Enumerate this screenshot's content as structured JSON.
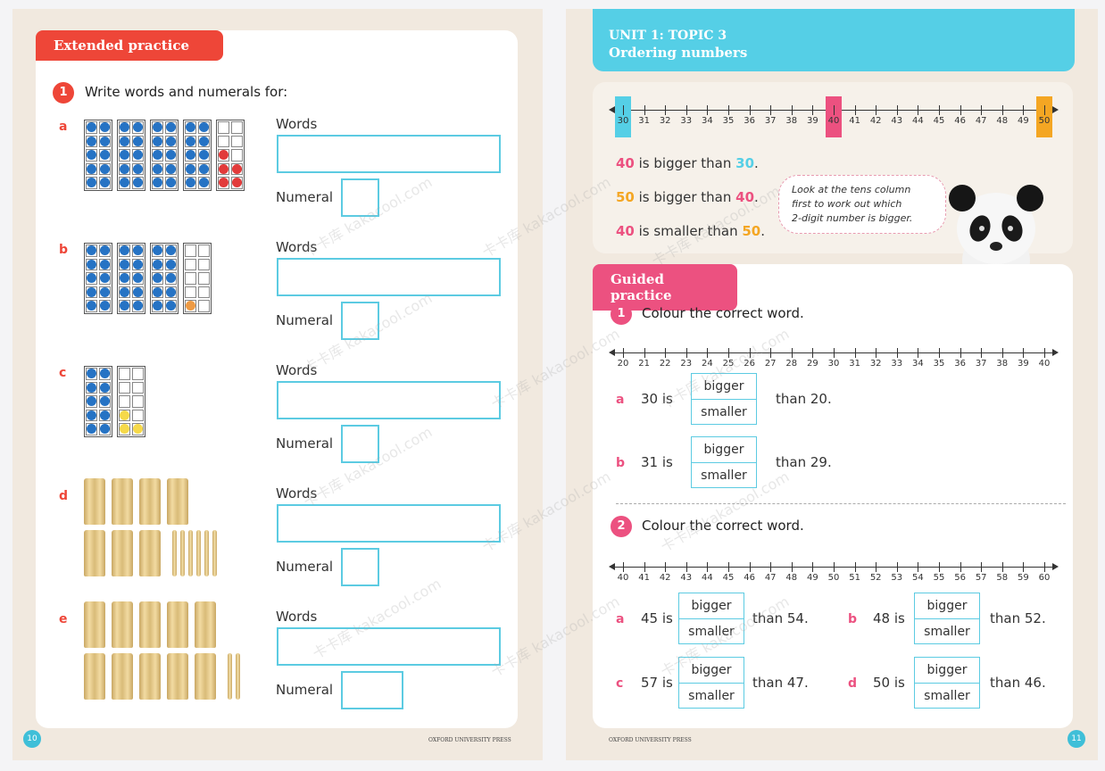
{
  "left": {
    "tab": "Extended practice",
    "q1": {
      "num": "1",
      "text": "Write words and numerals for:"
    },
    "letters": [
      "a",
      "b",
      "c",
      "d",
      "e"
    ],
    "words_label": "Words",
    "numeral_label": "Numeral",
    "page_number": "10",
    "footer": "OXFORD UNIVERSITY PRESS"
  },
  "right": {
    "unit": "UNIT 1: TOPIC 3",
    "topic": "Ordering numbers",
    "top_line": {
      "start": 30,
      "end": 50,
      "highlights": [
        {
          "value": 30,
          "color": "#55cfe6"
        },
        {
          "value": 40,
          "color": "#ec5180"
        },
        {
          "value": 50,
          "color": "#f4a623"
        }
      ]
    },
    "statements": [
      {
        "n1": "40",
        "c1": "#ec5180",
        "mid": " is bigger than ",
        "n2": "30",
        "c2": "#55cfe6",
        "end": "."
      },
      {
        "n1": "50",
        "c1": "#f4a623",
        "mid": " is bigger than ",
        "n2": "40",
        "c2": "#ec5180",
        "end": "."
      },
      {
        "n1": "40",
        "c1": "#ec5180",
        "mid": " is smaller than ",
        "n2": "50",
        "c2": "#f4a623",
        "end": "."
      }
    ],
    "bubble": [
      "Look at the tens column",
      "first to work out which",
      "2-digit number is bigger."
    ],
    "tab": "Guided practice",
    "q1": {
      "num": "1",
      "text": "Colour the correct word."
    },
    "line1": {
      "start": 20,
      "end": 40
    },
    "q1_items": [
      {
        "letter": "a",
        "left": "30 is",
        "right": "than 20."
      },
      {
        "letter": "b",
        "left": "31 is",
        "right": "than 29."
      }
    ],
    "q2": {
      "num": "2",
      "text": "Colour the correct word."
    },
    "line2": {
      "start": 40,
      "end": 60
    },
    "q2_items": [
      {
        "letter": "a",
        "left": "45 is",
        "right": "than 54."
      },
      {
        "letter": "b",
        "left": "48 is",
        "right": "than 52."
      },
      {
        "letter": "c",
        "left": "57 is",
        "right": "than 47."
      },
      {
        "letter": "d",
        "left": "50 is",
        "right": "than 46."
      }
    ],
    "bigger": "bigger",
    "smaller": "smaller",
    "page_number": "11",
    "footer": "OXFORD UNIVERSITY PRESS"
  },
  "ten_frames": {
    "a": {
      "full": 4,
      "partial": {
        "count": 5,
        "color": "red"
      }
    },
    "b": {
      "full": 3,
      "partial": {
        "count": 1,
        "color": "orange"
      }
    },
    "c": {
      "full": 1,
      "partial": {
        "count": 3,
        "color": "yellow"
      }
    }
  },
  "bundles": {
    "d": {
      "tens": 7,
      "ones": 6
    },
    "e": {
      "tens": 10,
      "ones": 2
    }
  },
  "watermark": "卡卡库 kakacool.com"
}
